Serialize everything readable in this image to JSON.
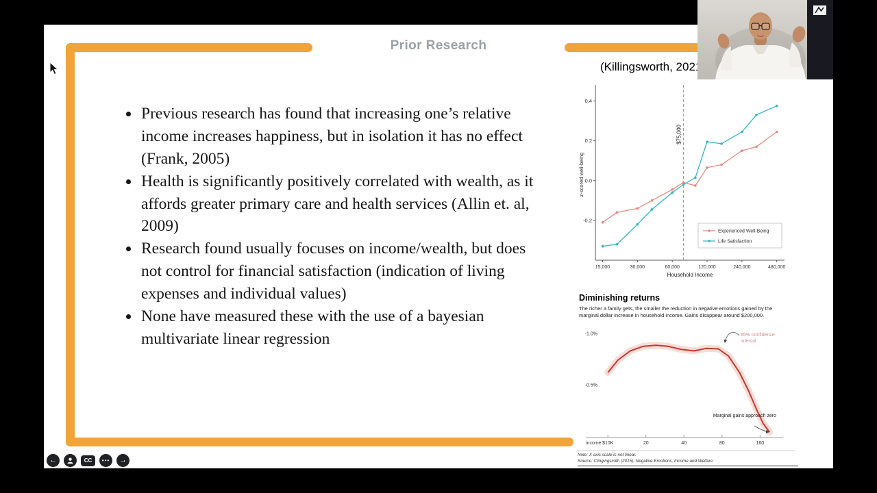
{
  "slide": {
    "title": "Prior Research",
    "accent_color": "#f0a43a",
    "bullets": [
      "Previous research has found that increasing one’s relative income increases happiness, but in isolation it has no effect (Frank, 2005)",
      "Health is significantly positively correlated with wealth, as it affords greater primary care and health services (Allin et. al, 2009)",
      "Research found usually focuses on income/wealth, but does not control for financial satisfaction (indication of living expenses and individual values)",
      "None have measured these with the use of a bayesian multivariate linear regression"
    ],
    "citation": "(Killingsworth, 2021)"
  },
  "chart_data": [
    {
      "type": "line",
      "title": "",
      "xlabel": "Household Income",
      "ylabel": "z-scored well-being",
      "x_scale": "log",
      "x": [
        15000,
        20000,
        30000,
        40000,
        60000,
        75000,
        95000,
        120000,
        160000,
        240000,
        320000,
        480000
      ],
      "xtick_values": [
        15000,
        30000,
        60000,
        120000,
        240000,
        480000
      ],
      "xtick_labels": [
        "15,000",
        "30,000",
        "60,000",
        "120,000",
        "240,000",
        "480,000"
      ],
      "ytick_values": [
        0.4,
        0.2,
        0.0,
        -0.2
      ],
      "ytick_labels": [
        "0.4",
        "0.2",
        "0.0",
        "-0.2"
      ],
      "ylim": [
        -0.4,
        0.46
      ],
      "refline": {
        "value": 75000,
        "label": "$75,000"
      },
      "legend_position": "lower right",
      "series": [
        {
          "name": "Experienced Well-Being",
          "color": "#e8897d",
          "values": [
            -0.21,
            -0.16,
            -0.14,
            -0.1,
            -0.045,
            -0.01,
            -0.025,
            0.065,
            0.08,
            0.15,
            0.17,
            0.245
          ]
        },
        {
          "name": "Life Satisfaction",
          "color": "#35b7c1",
          "values": [
            -0.33,
            -0.32,
            -0.22,
            -0.145,
            -0.06,
            -0.02,
            0.015,
            0.195,
            0.185,
            0.245,
            0.33,
            0.375
          ]
        }
      ]
    },
    {
      "type": "line",
      "title": "Diminishing returns",
      "subtitle": "The richer a family gets, the smaller the reduction in negative emotions gained by the marginal dollar increase in household income. Gains disappear around $200,000.",
      "x_scale": "log",
      "x_prefix": "income",
      "x": [
        10,
        12,
        15,
        19,
        24,
        30,
        38,
        48,
        60,
        75,
        90,
        110,
        130,
        150,
        170,
        190
      ],
      "values": [
        -0.62,
        -0.74,
        -0.83,
        -0.875,
        -0.885,
        -0.875,
        -0.845,
        -0.83,
        -0.855,
        -0.85,
        -0.78,
        -0.62,
        -0.44,
        -0.26,
        -0.12,
        -0.04
      ],
      "xtick_values": [
        10,
        20,
        40,
        80,
        160
      ],
      "xtick_labels": [
        "$10K",
        "20",
        "40",
        "80",
        "160"
      ],
      "ytick_values": [
        -1.0,
        -0.5
      ],
      "ytick_labels": [
        "-1.0%",
        "-0.5%"
      ],
      "ylim": [
        -1.08,
        0
      ],
      "line_color": "#c0392f",
      "band_color": "#f0b9b2",
      "annotations": [
        {
          "text": "95% confidence interval",
          "color": "#cf8d8d"
        },
        {
          "text": "Marginal gains approach zero",
          "color": "#222222"
        }
      ],
      "note": "Note: X axis scale is not linear.",
      "source": "Source: Clingingsmith (2015): Negative Emotions, Income and Welfare"
    }
  ],
  "player_controls": {
    "back_label": "←",
    "forward_label": "→",
    "cc_label": "CC",
    "more_label": "•••"
  }
}
